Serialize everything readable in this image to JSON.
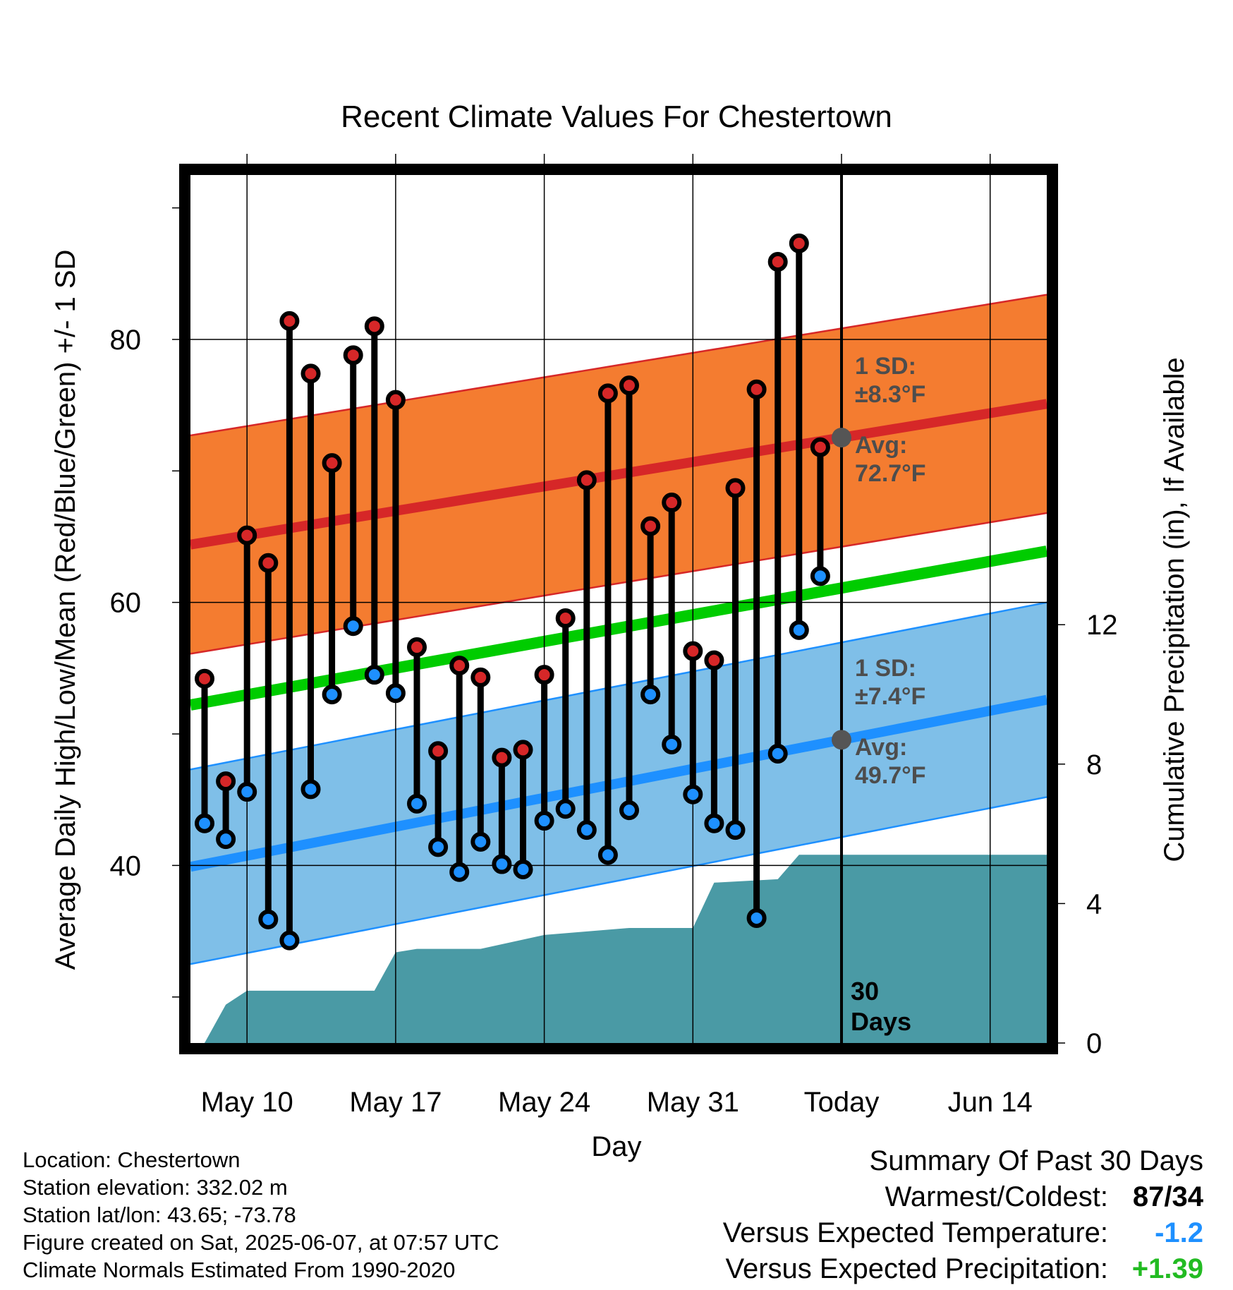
{
  "chart_data": {
    "type": "line",
    "title": "Recent Climate Values For Chestertown",
    "xlabel": "Day",
    "ylabel": "Average Daily High/Low/Mean (Red/Blue/Green) +/- 1 SD",
    "y2label": "Cumulative Precipitation (in), If Available",
    "x_tick_labels": [
      "May 10",
      "May 17",
      "May 24",
      "May 31",
      "Today",
      "Jun 14"
    ],
    "y_ticks": [
      40,
      60,
      80
    ],
    "y2_ticks": [
      0,
      4,
      8,
      12
    ],
    "ylim": [
      26.5,
      92.5
    ],
    "grid": true,
    "days": [
      "2025-05-08",
      "2025-05-09",
      "2025-05-10",
      "2025-05-11",
      "2025-05-12",
      "2025-05-13",
      "2025-05-14",
      "2025-05-15",
      "2025-05-16",
      "2025-05-17",
      "2025-05-18",
      "2025-05-19",
      "2025-05-20",
      "2025-05-21",
      "2025-05-22",
      "2025-05-23",
      "2025-05-24",
      "2025-05-25",
      "2025-05-26",
      "2025-05-27",
      "2025-05-28",
      "2025-05-29",
      "2025-05-30",
      "2025-05-31",
      "2025-06-01",
      "2025-06-02",
      "2025-06-03",
      "2025-06-04",
      "2025-06-05",
      "2025-06-06"
    ],
    "series": [
      {
        "name": "High",
        "color": "#d62728",
        "values": [
          54.2,
          46.4,
          65.1,
          63.0,
          81.4,
          77.4,
          70.6,
          78.8,
          81.0,
          75.4,
          56.6,
          48.7,
          55.2,
          54.3,
          48.2,
          48.8,
          54.5,
          58.8,
          69.3,
          75.9,
          76.5,
          65.8,
          67.6,
          56.3,
          55.6,
          68.7,
          76.2,
          85.9,
          87.3,
          71.8
        ]
      },
      {
        "name": "Low",
        "color": "#1e90ff",
        "values": [
          43.2,
          42.0,
          45.6,
          35.9,
          34.3,
          45.8,
          53.0,
          58.2,
          54.5,
          53.1,
          44.7,
          41.4,
          39.5,
          41.8,
          40.1,
          39.7,
          43.4,
          44.3,
          42.7,
          40.8,
          44.2,
          53.0,
          49.2,
          45.4,
          43.2,
          42.7,
          36.0,
          48.5,
          57.9,
          62.0
        ]
      },
      {
        "name": "Normal High",
        "color": "#d62728",
        "start": 64.4,
        "end": 75.1,
        "sd": 8.3
      },
      {
        "name": "Normal Low",
        "color": "#1e90ff",
        "start": 39.9,
        "end": 52.6,
        "sd": 7.4
      },
      {
        "name": "Normal Mean",
        "color": "#00cc00",
        "start": 52.2,
        "end": 63.9
      },
      {
        "name": "Cumulative Precipitation",
        "color": "#4a9aa5",
        "days": [
          "2025-05-08",
          "2025-05-09",
          "2025-05-10",
          "2025-05-14",
          "2025-05-16",
          "2025-05-17",
          "2025-05-18",
          "2025-05-21",
          "2025-05-24",
          "2025-05-28",
          "2025-05-31",
          "2025-06-01",
          "2025-06-04",
          "2025-06-05",
          "2025-06-16"
        ],
        "values": [
          0,
          1.1,
          1.5,
          1.5,
          1.5,
          2.6,
          2.7,
          2.7,
          3.1,
          3.3,
          3.3,
          4.6,
          4.7,
          5.4,
          5.4
        ]
      }
    ],
    "annotations": {
      "high_sd_label": "1 SD:",
      "high_sd_value": "±8.3°F",
      "high_avg_label": "Avg:",
      "high_avg_value": "72.7°F",
      "low_sd_label": "1 SD:",
      "low_sd_value": "±7.4°F",
      "low_avg_label": "Avg:",
      "low_avg_value": "49.7°F",
      "window_count": "30",
      "window_unit": "Days"
    }
  },
  "info": {
    "location": "Location: Chestertown",
    "elevation": "Station elevation: 332.02 m",
    "latlon": "Station lat/lon: 43.65; -73.78",
    "created": "Figure created on Sat, 2025-06-07, at 07:57 UTC",
    "normals": "Climate Normals Estimated From 1990-2020"
  },
  "summary": {
    "heading": "Summary Of Past 30 Days",
    "warm_cold_label": "Warmest/Coldest:",
    "warm_cold_value": "87/34",
    "temp_label": "Versus Expected Temperature:",
    "temp_value": "-1.2",
    "temp_color": "#1e90ff",
    "precip_label": "Versus Expected Precipitation:",
    "precip_value": "+1.39",
    "precip_color": "#22bb22"
  }
}
